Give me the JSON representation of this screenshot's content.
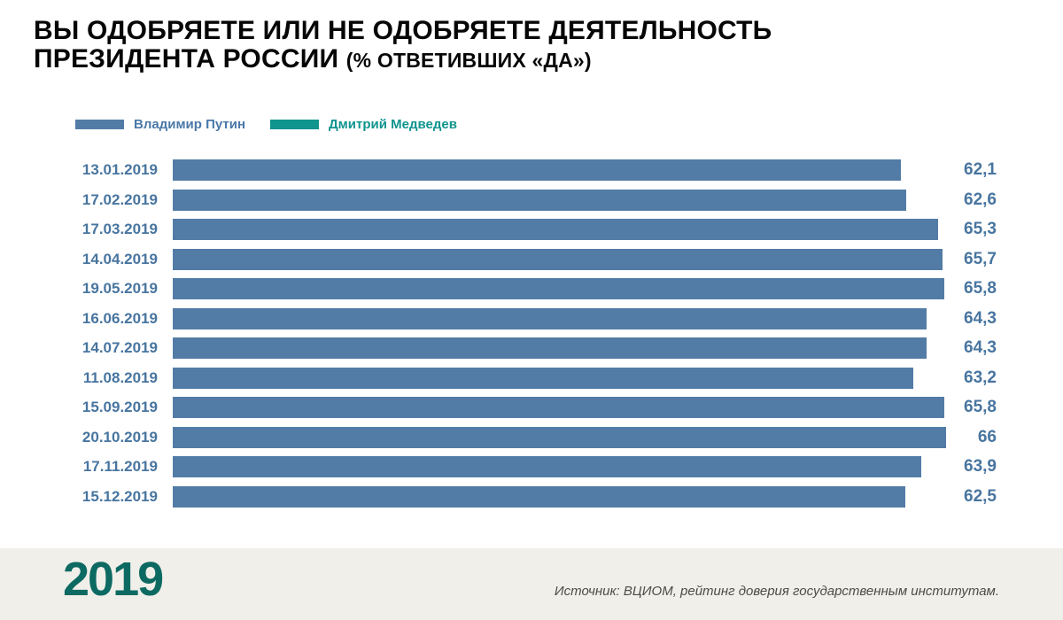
{
  "header": {
    "title_line1": "ВЫ ОДОБРЯЕТЕ ИЛИ НЕ ОДОБРЯЕТЕ ДЕЯТЕЛЬНОСТЬ",
    "title_line2": "ПРЕЗИДЕНТА РОССИИ",
    "title_note": "(% ОТВЕТИВШИХ «ДА»)"
  },
  "legend": {
    "items": [
      {
        "label": "Владимир Путин",
        "color": "#527ca6"
      },
      {
        "label": "Дмитрий Медведев",
        "color": "#0f948e"
      }
    ]
  },
  "chart_data": {
    "type": "bar",
    "orientation": "horizontal",
    "title": "ВЫ ОДОБРЯЕТЕ ИЛИ НЕ ОДОБРЯЕТЕ ДЕЯТЕЛЬНОСТЬ ПРЕЗИДЕНТА РОССИИ (% ОТВЕТИВШИХ «ДА»)",
    "categories": [
      "13.01.2019",
      "17.02.2019",
      "17.03.2019",
      "14.04.2019",
      "19.05.2019",
      "16.06.2019",
      "14.07.2019",
      "11.08.2019",
      "15.09.2019",
      "20.10.2019",
      "17.11.2019",
      "15.12.2019"
    ],
    "series": [
      {
        "name": "Владимир Путин",
        "color": "#527ca6",
        "values": [
          62.1,
          62.6,
          65.3,
          65.7,
          65.8,
          64.3,
          64.3,
          63.2,
          65.8,
          66,
          63.9,
          62.5
        ],
        "value_labels": [
          "62,1",
          "62,6",
          "65,3",
          "65,7",
          "65,8",
          "64,3",
          "64,3",
          "63,2",
          "65,8",
          "66",
          "63,9",
          "62,5"
        ]
      },
      {
        "name": "Дмитрий Медведев",
        "color": "#0f948e",
        "values": [],
        "value_labels": []
      }
    ],
    "xlim": [
      0,
      66
    ],
    "grid": false,
    "legend_position": "top-left",
    "value_label_position": "right-aligned-column",
    "category_label_color": "#48759f",
    "value_label_color": "#48759f"
  },
  "footer": {
    "year": "2019",
    "source": "Источник: ВЦИОМ, рейтинг доверия государственным институтам."
  },
  "colors": {
    "putin_bar": "#527ca6",
    "medvedev_accent": "#0f948e",
    "label_blue": "#48759f",
    "year_teal": "#0d6a62",
    "footer_background": "#f0efe9",
    "source_text": "#4c4b47",
    "title_text": "#060606"
  }
}
